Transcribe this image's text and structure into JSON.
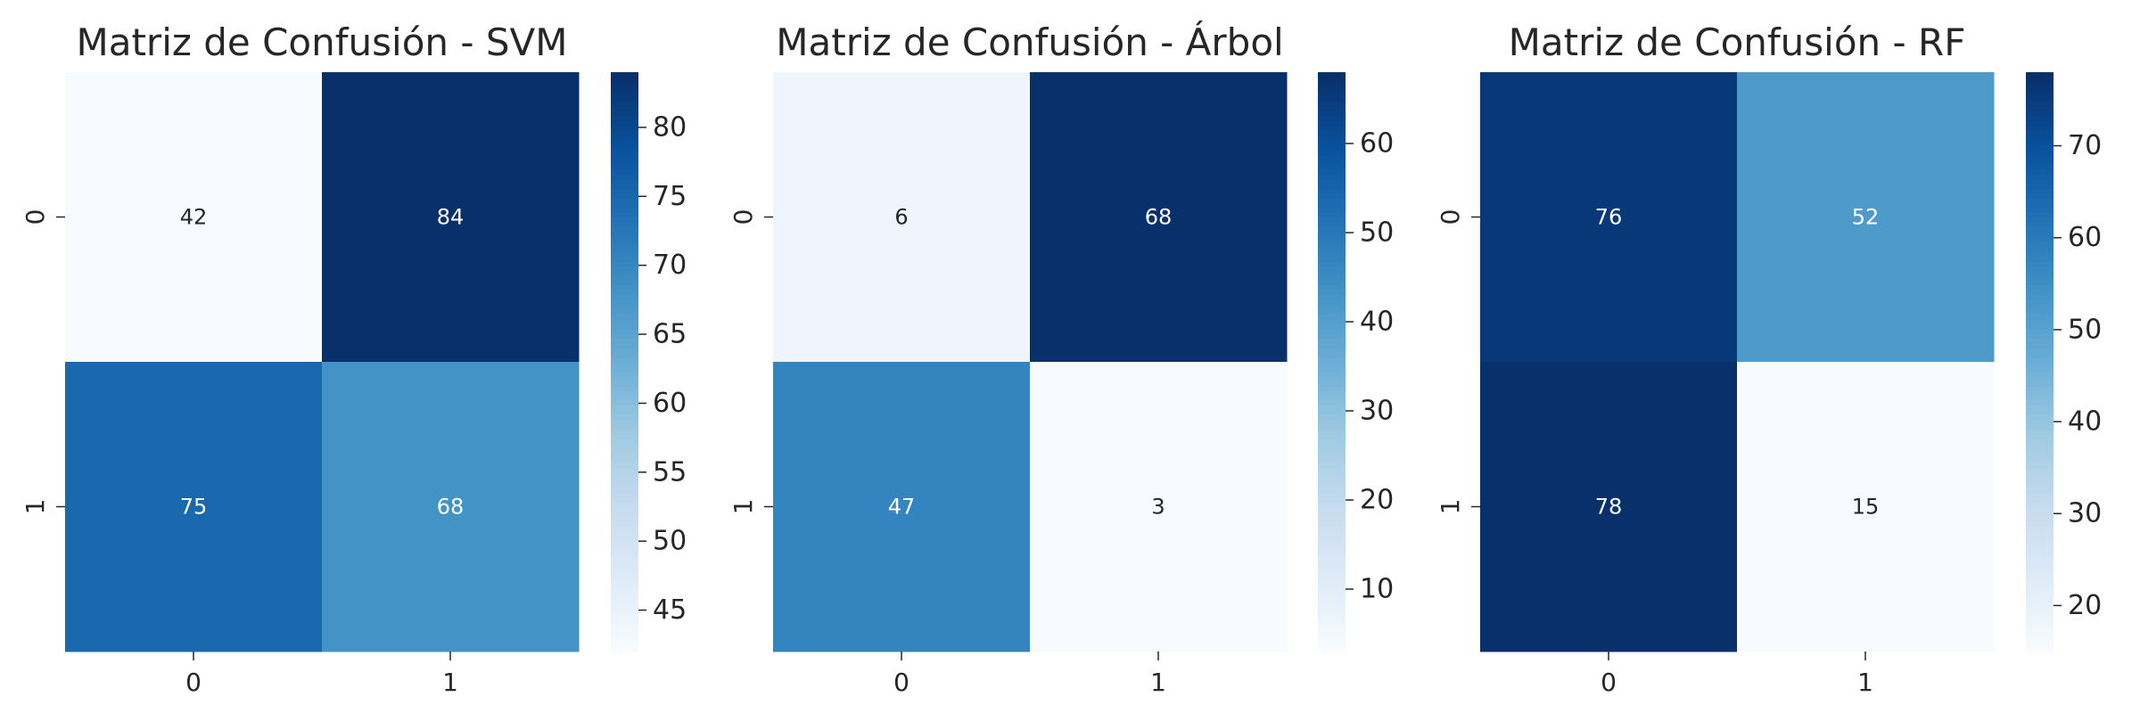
{
  "chart_data": [
    {
      "type": "heatmap",
      "title": "Matriz de Confusión - SVM",
      "x_categories": [
        "0",
        "1"
      ],
      "y_categories": [
        "0",
        "1"
      ],
      "values": [
        [
          42,
          84
        ],
        [
          75,
          68
        ]
      ],
      "colormap": "Blues",
      "colorbar": {
        "min": 42,
        "max": 84,
        "ticks": [
          45,
          50,
          55,
          60,
          65,
          70,
          75,
          80
        ]
      },
      "annotations": true
    },
    {
      "type": "heatmap",
      "title": "Matriz de Confusión - Árbol",
      "x_categories": [
        "0",
        "1"
      ],
      "y_categories": [
        "0",
        "1"
      ],
      "values": [
        [
          6,
          68
        ],
        [
          47,
          3
        ]
      ],
      "colormap": "Blues",
      "colorbar": {
        "min": 3,
        "max": 68,
        "ticks": [
          10,
          20,
          30,
          40,
          50,
          60
        ]
      },
      "annotations": true
    },
    {
      "type": "heatmap",
      "title": "Matriz de Confusión - RF",
      "x_categories": [
        "0",
        "1"
      ],
      "y_categories": [
        "0",
        "1"
      ],
      "values": [
        [
          76,
          52
        ],
        [
          78,
          15
        ]
      ],
      "colormap": "Blues",
      "colorbar": {
        "min": 15,
        "max": 78,
        "ticks": [
          20,
          30,
          40,
          50,
          60,
          70
        ]
      },
      "annotations": true
    }
  ],
  "colors": {
    "blues_scale": [
      "#f7fbff",
      "#deebf7",
      "#c6dbef",
      "#9ecae1",
      "#6baed6",
      "#4292c6",
      "#2171b5",
      "#08519c",
      "#08306b"
    ],
    "text_dark": "#262626",
    "annotation_light": "#ffffff",
    "annotation_dark": "#262626"
  }
}
